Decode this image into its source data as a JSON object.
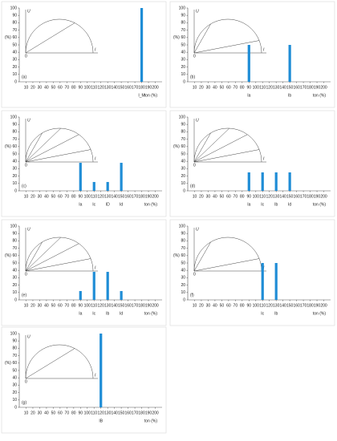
{
  "chart_data": [
    {
      "type": "bar",
      "panel": "(a)",
      "x": [
        180
      ],
      "values": [
        100
      ],
      "bar_labels": [
        "I_M"
      ],
      "color": "#1f8dd6",
      "xlim": [
        0,
        210
      ],
      "xticks": [
        10,
        20,
        30,
        40,
        50,
        60,
        70,
        80,
        90,
        100,
        110,
        120,
        130,
        140,
        150,
        160,
        170,
        180,
        190,
        200
      ],
      "ylim": [
        0,
        100
      ],
      "yticks": [
        0,
        10,
        20,
        30,
        40,
        50,
        60,
        70,
        80,
        90,
        100
      ],
      "x_label": "ton (%)",
      "y_label": "(%)",
      "inset": {
        "y_label": "U",
        "x_label": "I",
        "origin": "0"
      }
    },
    {
      "type": "bar",
      "panel": "(b)",
      "x": [
        90,
        150
      ],
      "values": [
        50,
        50
      ],
      "bar_labels": [
        "Ia",
        "Ib"
      ],
      "color": "#1f8dd6",
      "xlim": [
        0,
        210
      ],
      "xticks": [
        10,
        20,
        30,
        40,
        50,
        60,
        70,
        80,
        90,
        100,
        110,
        120,
        130,
        140,
        150,
        160,
        170,
        180,
        190,
        200
      ],
      "ylim": [
        0,
        100
      ],
      "yticks": [
        0,
        10,
        20,
        30,
        40,
        50,
        60,
        70,
        80,
        90,
        100
      ],
      "x_label": "ton (%)",
      "y_label": "(%)",
      "inset": {
        "y_label": "U",
        "x_label": "I",
        "origin": "0"
      }
    },
    {
      "type": "bar",
      "panel": "(c)",
      "x": [
        90,
        110,
        130,
        150
      ],
      "values": [
        38,
        12,
        12,
        38
      ],
      "bar_labels": [
        "Ia",
        "Ic",
        "ID",
        "Id"
      ],
      "color": "#1f8dd6",
      "xlim": [
        0,
        210
      ],
      "xticks": [
        10,
        20,
        30,
        40,
        50,
        60,
        70,
        80,
        90,
        100,
        110,
        120,
        130,
        140,
        150,
        160,
        170,
        180,
        190,
        200
      ],
      "ylim": [
        0,
        100
      ],
      "yticks": [
        0,
        10,
        20,
        30,
        40,
        50,
        60,
        70,
        80,
        90,
        100
      ],
      "x_label": "ton (%)",
      "y_label": "(%)",
      "inset": {
        "y_label": "U",
        "x_label": "I",
        "origin": "0"
      }
    },
    {
      "type": "bar",
      "panel": "(d)",
      "x": [
        90,
        110,
        130,
        150
      ],
      "values": [
        25,
        25,
        25,
        25
      ],
      "bar_labels": [
        "Ia",
        "Ic",
        "Ib",
        "Id"
      ],
      "color": "#1f8dd6",
      "xlim": [
        0,
        210
      ],
      "xticks": [
        10,
        20,
        30,
        40,
        50,
        60,
        70,
        80,
        90,
        100,
        110,
        120,
        130,
        140,
        150,
        160,
        170,
        180,
        190,
        200
      ],
      "ylim": [
        0,
        100
      ],
      "yticks": [
        0,
        10,
        20,
        30,
        40,
        50,
        60,
        70,
        80,
        90,
        100
      ],
      "x_label": "ton (%)",
      "y_label": "(%)",
      "inset": {
        "y_label": "U",
        "x_label": "I",
        "origin": "0"
      }
    },
    {
      "type": "bar",
      "panel": "(e)",
      "x": [
        90,
        110,
        130,
        150
      ],
      "values": [
        12,
        38,
        38,
        12
      ],
      "bar_labels": [
        "Ia",
        "Ic",
        "Ib",
        "Id"
      ],
      "color": "#1f8dd6",
      "xlim": [
        0,
        210
      ],
      "xticks": [
        10,
        20,
        30,
        40,
        50,
        60,
        70,
        80,
        90,
        100,
        110,
        120,
        130,
        140,
        150,
        160,
        170,
        180,
        190,
        200
      ],
      "ylim": [
        0,
        100
      ],
      "yticks": [
        0,
        10,
        20,
        30,
        40,
        50,
        60,
        70,
        80,
        90,
        100
      ],
      "x_label": "ton (%)",
      "y_label": "(%)",
      "inset": {
        "y_label": "U",
        "x_label": "I",
        "origin": "0"
      }
    },
    {
      "type": "bar",
      "panel": "(f)",
      "x": [
        110,
        130
      ],
      "values": [
        50,
        50
      ],
      "bar_labels": [
        "Ic",
        "Ib"
      ],
      "color": "#1f8dd6",
      "xlim": [
        0,
        210
      ],
      "xticks": [
        10,
        20,
        30,
        40,
        50,
        60,
        70,
        80,
        90,
        100,
        110,
        120,
        130,
        140,
        150,
        160,
        170,
        180,
        190,
        200
      ],
      "ylim": [
        0,
        100
      ],
      "yticks": [
        0,
        10,
        20,
        30,
        40,
        50,
        60,
        70,
        80,
        90,
        100
      ],
      "x_label": "ton (%)",
      "y_label": "(%)",
      "inset": {
        "y_label": "U",
        "x_label": "I",
        "origin": "0"
      }
    },
    {
      "type": "bar",
      "panel": "(g)",
      "x": [
        120
      ],
      "values": [
        100
      ],
      "bar_labels": [
        "IB"
      ],
      "color": "#1f8dd6",
      "xlim": [
        0,
        210
      ],
      "xticks": [
        10,
        20,
        30,
        40,
        50,
        60,
        70,
        80,
        90,
        100,
        110,
        120,
        130,
        140,
        150,
        160,
        170,
        180,
        190,
        200
      ],
      "ylim": [
        0,
        100
      ],
      "yticks": [
        0,
        10,
        20,
        30,
        40,
        50,
        60,
        70,
        80,
        90,
        100
      ],
      "x_label": "ton (%)",
      "y_label": "(%)",
      "inset": {
        "y_label": "U",
        "x_label": "I",
        "origin": "0"
      }
    }
  ]
}
